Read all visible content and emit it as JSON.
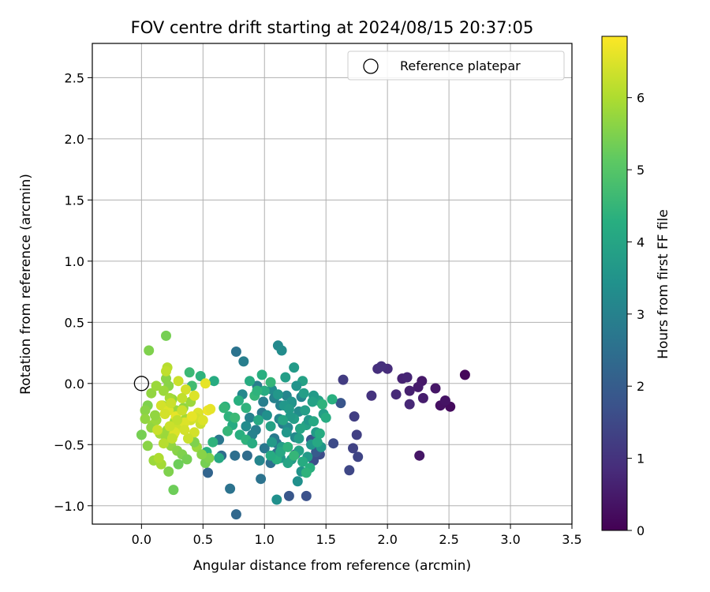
{
  "chart_data": {
    "type": "scatter",
    "title": "FOV centre drift starting at 2024/08/15 20:37:05",
    "xlabel": "Angular distance from reference (arcmin)",
    "ylabel": "Rotation from reference (arcmin)",
    "xlim": [
      -0.4,
      3.5
    ],
    "ylim": [
      -1.15,
      2.78
    ],
    "xticks": [
      0.0,
      0.5,
      1.0,
      1.5,
      2.0,
      2.5,
      3.0,
      3.5
    ],
    "yticks": [
      -1.0,
      -0.5,
      0.0,
      0.5,
      1.0,
      1.5,
      2.0,
      2.5
    ],
    "xtick_labels": [
      "0.0",
      "0.5",
      "1.0",
      "1.5",
      "2.0",
      "2.5",
      "3.0",
      "3.5"
    ],
    "ytick_labels": [
      "−1.0",
      "−0.5",
      "0.0",
      "0.5",
      "1.0",
      "1.5",
      "2.0",
      "2.5"
    ],
    "grid": true,
    "legend": {
      "placement": "top-right",
      "entries": [
        "Reference platepar"
      ]
    },
    "reference": {
      "x": 0.0,
      "y": 0.0
    },
    "colorbar": {
      "label": "Hours from first FF file",
      "range": [
        0,
        6.85
      ],
      "ticks": [
        0,
        1,
        2,
        3,
        4,
        5,
        6
      ],
      "tick_labels": [
        "0",
        "1",
        "2",
        "3",
        "4",
        "5",
        "6"
      ],
      "colormap": "viridis"
    },
    "series": [
      {
        "x": [
          2.63,
          2.51,
          2.43,
          2.47,
          2.39,
          2.28,
          2.25,
          2.29,
          2.18,
          2.12,
          2.16,
          2.18,
          2.07,
          2.0,
          1.92,
          1.95,
          1.87,
          2.26
        ],
        "y": [
          0.07,
          -0.19,
          -0.18,
          -0.14,
          -0.04,
          0.02,
          -0.03,
          -0.12,
          -0.06,
          0.04,
          0.05,
          -0.17,
          -0.09,
          0.12,
          0.12,
          0.14,
          -0.1,
          -0.59
        ],
        "c": [
          0.1,
          0.2,
          0.3,
          0.35,
          0.4,
          0.45,
          0.5,
          0.55,
          0.6,
          0.65,
          0.7,
          0.75,
          0.8,
          0.85,
          0.9,
          0.95,
          1.0,
          0.4
        ]
      },
      {
        "x": [
          1.64,
          1.73,
          1.75,
          1.72,
          1.76,
          1.69,
          1.56,
          1.45,
          1.4,
          1.34,
          1.38,
          1.62,
          1.2,
          1.25,
          1.42
        ],
        "y": [
          0.03,
          -0.27,
          -0.42,
          -0.53,
          -0.6,
          -0.71,
          -0.49,
          -0.58,
          -0.63,
          -0.92,
          -0.46,
          -0.16,
          -0.92,
          -0.58,
          -0.56
        ],
        "c": [
          1.2,
          1.25,
          1.3,
          1.35,
          1.4,
          1.45,
          1.55,
          1.6,
          1.65,
          1.7,
          1.75,
          1.8,
          1.85,
          1.9,
          1.95
        ]
      },
      {
        "x": [
          0.77,
          0.86,
          0.76,
          0.54,
          0.72,
          0.63,
          0.65,
          0.97,
          1.05,
          1.1,
          1.0,
          1.08,
          0.93,
          0.88,
          0.98,
          1.13,
          1.18,
          0.82,
          0.94,
          1.06,
          1.22,
          1.3,
          1.15,
          0.9,
          1.02,
          0.85,
          0.96,
          1.1,
          1.25,
          1.12,
          0.99,
          1.28,
          1.08,
          1.19
        ],
        "y": [
          -1.07,
          -0.59,
          -0.59,
          -0.73,
          -0.86,
          -0.46,
          -0.59,
          -0.78,
          -0.65,
          -0.57,
          -0.53,
          -0.45,
          -0.38,
          -0.28,
          -0.24,
          -0.18,
          -0.1,
          -0.09,
          -0.02,
          -0.05,
          -0.16,
          -0.11,
          -0.33,
          -0.42,
          -0.26,
          -0.35,
          -0.63,
          -0.49,
          -0.44,
          -0.29,
          -0.15,
          -0.23,
          -0.12,
          -0.36
        ],
        "c": [
          2.3,
          2.4,
          2.5,
          2.2,
          2.6,
          2.7,
          2.4,
          2.6,
          2.5,
          2.4,
          2.7,
          2.8,
          2.9,
          3.0,
          2.8,
          3.0,
          3.1,
          3.2,
          2.9,
          3.3,
          3.2,
          3.1,
          2.8,
          3.0,
          3.4,
          3.3,
          3.1,
          2.7,
          3.2,
          3.1,
          2.9,
          3.3,
          3.0,
          3.2
        ]
      },
      {
        "x": [
          0.77,
          0.83,
          1.11,
          1.14,
          1.1,
          1.13,
          1.27,
          1.3,
          1.38,
          1.42,
          1.48,
          1.44,
          1.4,
          1.32,
          1.22,
          1.16,
          1.2,
          1.24,
          1.34,
          1.29,
          1.18,
          1.06,
          1.14,
          1.28,
          1.35,
          1.46,
          1.24,
          1.17,
          1.31,
          1.26,
          1.36,
          1.21,
          1.28,
          1.05,
          1.15,
          1.33,
          1.11,
          1.39,
          1.22,
          1.19
        ],
        "y": [
          0.26,
          0.18,
          0.31,
          0.27,
          -0.95,
          -0.61,
          -0.8,
          -0.72,
          -0.5,
          -0.4,
          -0.25,
          -0.14,
          -0.1,
          -0.08,
          -0.15,
          -0.18,
          -0.21,
          -0.29,
          -0.34,
          -0.37,
          -0.4,
          -0.48,
          -0.52,
          -0.55,
          -0.6,
          -0.52,
          0.13,
          0.05,
          0.02,
          -0.02,
          -0.3,
          -0.27,
          -0.45,
          -0.35,
          -0.3,
          -0.22,
          -0.09,
          -0.15,
          -0.62,
          -0.65
        ],
        "c": [
          2.6,
          2.9,
          3.2,
          3.3,
          3.4,
          3.6,
          3.4,
          3.5,
          3.6,
          3.7,
          3.8,
          3.9,
          3.7,
          3.8,
          3.5,
          3.6,
          3.7,
          3.8,
          3.9,
          4.0,
          3.6,
          3.7,
          3.8,
          3.9,
          3.7,
          3.6,
          3.7,
          3.8,
          3.9,
          3.5,
          3.6,
          3.7,
          3.8,
          3.9,
          4.0,
          3.8,
          3.6,
          3.9,
          3.7,
          4.0
        ]
      },
      {
        "x": [
          0.39,
          0.41,
          0.48,
          0.59,
          0.68,
          0.71,
          0.74,
          0.8,
          0.85,
          0.9,
          0.95,
          1.0,
          0.79,
          0.67,
          0.58,
          0.53,
          0.63,
          0.7,
          0.76,
          0.85,
          0.92,
          1.5,
          1.55,
          1.47,
          1.43,
          1.1,
          1.05,
          1.13,
          1.19,
          1.24,
          1.31,
          1.37,
          1.34,
          1.4,
          1.45,
          0.98,
          0.88,
          1.05,
          0.94
        ],
        "y": [
          0.09,
          -0.02,
          0.06,
          0.02,
          -0.19,
          -0.27,
          -0.34,
          -0.42,
          -0.46,
          -0.49,
          -0.3,
          -0.06,
          -0.14,
          -0.2,
          -0.48,
          -0.56,
          -0.61,
          -0.39,
          -0.28,
          -0.2,
          -0.1,
          -0.28,
          -0.13,
          -0.17,
          -0.48,
          -0.62,
          -0.59,
          -0.56,
          -0.52,
          -0.59,
          -0.64,
          -0.69,
          -0.73,
          -0.31,
          -0.41,
          0.07,
          0.02,
          0.01,
          -0.06
        ],
        "c": [
          4.6,
          4.7,
          4.4,
          4.2,
          4.3,
          4.4,
          4.2,
          4.3,
          4.4,
          4.2,
          4.1,
          4.2,
          4.3,
          4.5,
          4.4,
          4.3,
          4.1,
          4.5,
          4.6,
          4.4,
          4.5,
          4.2,
          4.3,
          4.4,
          4.1,
          4.3,
          4.2,
          4.1,
          4.4,
          4.5,
          4.2,
          4.3,
          4.4,
          4.1,
          4.2,
          4.3,
          4.2,
          4.5,
          4.4
        ]
      },
      {
        "x": [
          0.2,
          0.06,
          0.2,
          0.22,
          0.25,
          0.08,
          0.12,
          0.18,
          0.23,
          0.05,
          0.03,
          0.03,
          0.09,
          0.15,
          0.2,
          0.24,
          0.29,
          0.33,
          0.37,
          0.3,
          0.1,
          0.16,
          0.22,
          0.14,
          0.0,
          0.05,
          0.08,
          0.12,
          0.26,
          0.32,
          0.38,
          0.45,
          0.52,
          0.55,
          0.49,
          0.43,
          0.36,
          0.28,
          0.17,
          0.11,
          0.21,
          0.27,
          0.34,
          0.4,
          0.46
        ],
        "y": [
          0.39,
          0.27,
          0.04,
          -0.02,
          -0.13,
          -0.08,
          -0.02,
          -0.06,
          -0.12,
          -0.18,
          -0.22,
          -0.29,
          -0.34,
          -0.41,
          -0.44,
          -0.51,
          -0.55,
          -0.58,
          -0.62,
          -0.66,
          -0.63,
          -0.66,
          -0.72,
          -0.61,
          -0.42,
          -0.51,
          -0.36,
          -0.3,
          -0.87,
          -0.35,
          -0.45,
          -0.52,
          -0.65,
          -0.61,
          -0.58,
          -0.48,
          -0.29,
          -0.22,
          -0.18,
          -0.26,
          -0.38,
          -0.31,
          -0.2,
          -0.15,
          -0.26
        ],
        "c": [
          5.4,
          5.5,
          5.6,
          5.6,
          5.7,
          5.7,
          5.8,
          5.8,
          5.9,
          5.5,
          5.6,
          5.7,
          5.8,
          5.9,
          5.8,
          5.7,
          5.6,
          5.5,
          5.4,
          5.3,
          5.8,
          5.9,
          5.5,
          6.0,
          5.4,
          5.6,
          5.7,
          5.8,
          5.3,
          5.6,
          5.7,
          5.8,
          5.4,
          5.5,
          5.6,
          5.5,
          5.9,
          5.8,
          5.9,
          5.7,
          5.8,
          5.9,
          5.7,
          5.8,
          5.9
        ]
      },
      {
        "x": [
          0.21,
          0.2,
          0.3,
          0.36,
          0.43,
          0.52,
          0.54,
          0.56,
          0.46,
          0.4,
          0.31,
          0.26,
          0.18,
          0.13,
          0.16,
          0.22,
          0.28,
          0.35,
          0.43,
          0.48,
          0.33,
          0.24,
          0.19,
          0.27,
          0.38,
          0.44,
          0.5,
          0.29,
          0.23,
          0.35,
          0.41,
          0.33,
          0.25
        ],
        "y": [
          0.13,
          0.1,
          0.02,
          -0.05,
          -0.1,
          0.0,
          -0.22,
          -0.21,
          -0.24,
          -0.3,
          -0.35,
          -0.42,
          -0.49,
          -0.38,
          -0.18,
          -0.22,
          -0.27,
          -0.32,
          -0.4,
          -0.33,
          -0.12,
          -0.16,
          -0.25,
          -0.4,
          -0.45,
          -0.28,
          -0.3,
          -0.3,
          -0.35,
          -0.38,
          -0.27,
          -0.22,
          -0.45
        ],
        "c": [
          6.1,
          6.2,
          6.3,
          6.4,
          6.5,
          6.6,
          6.7,
          6.6,
          6.5,
          6.4,
          6.3,
          6.2,
          6.1,
          6.3,
          6.4,
          6.5,
          6.6,
          6.5,
          6.4,
          6.3,
          6.2,
          6.3,
          6.4,
          6.5,
          6.3,
          6.4,
          6.5,
          6.2,
          6.3,
          6.4,
          6.6,
          6.3,
          6.2
        ]
      }
    ]
  }
}
